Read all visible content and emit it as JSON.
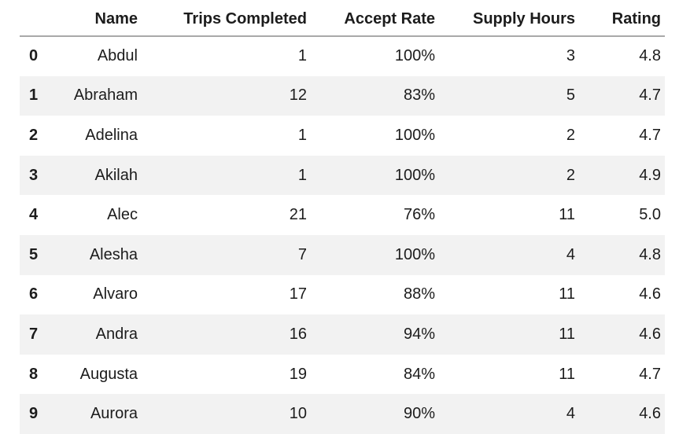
{
  "table": {
    "columns": {
      "index": "",
      "name": "Name",
      "trips_completed": "Trips Completed",
      "accept_rate": "Accept Rate",
      "supply_hours": "Supply Hours",
      "rating": "Rating"
    },
    "rows": [
      {
        "index": "0",
        "name": "Abdul",
        "trips_completed": "1",
        "accept_rate": "100%",
        "supply_hours": "3",
        "rating": "4.8"
      },
      {
        "index": "1",
        "name": "Abraham",
        "trips_completed": "12",
        "accept_rate": "83%",
        "supply_hours": "5",
        "rating": "4.7"
      },
      {
        "index": "2",
        "name": "Adelina",
        "trips_completed": "1",
        "accept_rate": "100%",
        "supply_hours": "2",
        "rating": "4.7"
      },
      {
        "index": "3",
        "name": "Akilah",
        "trips_completed": "1",
        "accept_rate": "100%",
        "supply_hours": "2",
        "rating": "4.9"
      },
      {
        "index": "4",
        "name": "Alec",
        "trips_completed": "21",
        "accept_rate": "76%",
        "supply_hours": "11",
        "rating": "5.0"
      },
      {
        "index": "5",
        "name": "Alesha",
        "trips_completed": "7",
        "accept_rate": "100%",
        "supply_hours": "4",
        "rating": "4.8"
      },
      {
        "index": "6",
        "name": "Alvaro",
        "trips_completed": "17",
        "accept_rate": "88%",
        "supply_hours": "11",
        "rating": "4.6"
      },
      {
        "index": "7",
        "name": "Andra",
        "trips_completed": "16",
        "accept_rate": "94%",
        "supply_hours": "11",
        "rating": "4.6"
      },
      {
        "index": "8",
        "name": "Augusta",
        "trips_completed": "19",
        "accept_rate": "84%",
        "supply_hours": "11",
        "rating": "4.7"
      },
      {
        "index": "9",
        "name": "Aurora",
        "trips_completed": "10",
        "accept_rate": "90%",
        "supply_hours": "4",
        "rating": "4.6"
      }
    ],
    "colors": {
      "background": "#ffffff",
      "stripe": "#f2f2f2",
      "header_rule": "#a9a9a9",
      "text": "#1c1c1c"
    }
  }
}
